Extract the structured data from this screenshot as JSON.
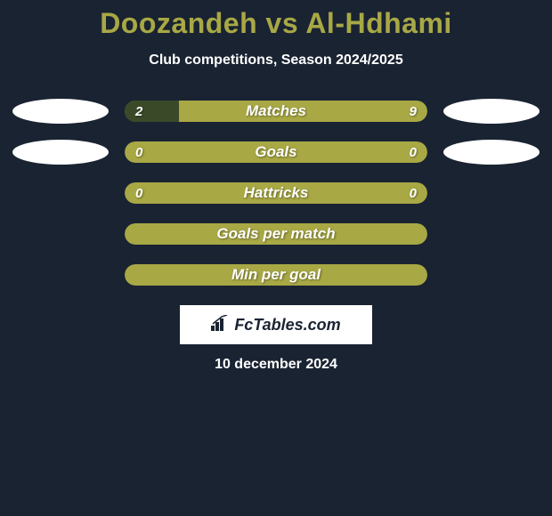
{
  "title": "Doozandeh vs Al-Hdhami",
  "subtitle": "Club competitions, Season 2024/2025",
  "colors": {
    "background": "#1a2332",
    "accent": "#a8a845",
    "bar_dark": "#3a4a28",
    "bar_olive": "#a8a845",
    "text": "#ffffff"
  },
  "rows": [
    {
      "label": "Matches",
      "left_val": "2",
      "right_val": "9",
      "left_pct": 18,
      "left_color": "#3a4a28",
      "right_color": "#a8a845",
      "show_ellipses": true
    },
    {
      "label": "Goals",
      "left_val": "0",
      "right_val": "0",
      "left_pct": 0,
      "left_color": "#a8a845",
      "right_color": "#a8a845",
      "show_ellipses": true
    },
    {
      "label": "Hattricks",
      "left_val": "0",
      "right_val": "0",
      "left_pct": 0,
      "left_color": "#a8a845",
      "right_color": "#a8a845",
      "show_ellipses": false
    },
    {
      "label": "Goals per match",
      "left_val": "",
      "right_val": "",
      "left_pct": 0,
      "left_color": "#a8a845",
      "right_color": "#a8a845",
      "show_ellipses": false
    },
    {
      "label": "Min per goal",
      "left_val": "",
      "right_val": "",
      "left_pct": 0,
      "left_color": "#a8a845",
      "right_color": "#a8a845",
      "show_ellipses": false
    }
  ],
  "logo": "FcTables.com",
  "date": "10 december 2024"
}
